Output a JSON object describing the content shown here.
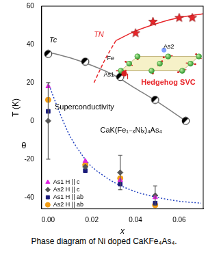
{
  "chart_data": {
    "type": "scatter",
    "caption": "Phase diagram of Ni doped CaKFe₄As₄.",
    "x_label": "x",
    "y_label": "T (K)",
    "xlim": [
      -0.003,
      0.071
    ],
    "xticks": [
      {
        "value": 0,
        "label": "0.00"
      },
      {
        "value": 0.02,
        "label": "0.02"
      },
      {
        "value": 0.04,
        "label": "0.04"
      },
      {
        "value": 0.06,
        "label": "0.06"
      }
    ],
    "ylim": [
      -46,
      60
    ],
    "yticks": [
      -40,
      -20,
      0,
      20,
      40,
      60
    ],
    "grid": false,
    "legend": "lower left",
    "phase_points": [
      {
        "name": "Tc",
        "color": "#000000",
        "marker": "half-filled circle",
        "x": [
          0,
          0.017,
          0.033,
          0.049,
          0.063
        ],
        "values": [
          35,
          31,
          23,
          11,
          0
        ]
      },
      {
        "name": "TN",
        "color": "#e8262a",
        "marker": "star",
        "x": [
          0.04,
          0.048,
          0.06,
          0.066
        ],
        "values": [
          46,
          52,
          54,
          54
        ]
      }
    ],
    "series": [
      {
        "name": "As1 H || c",
        "color": "#e020e0",
        "marker": "triangle",
        "x": [
          0,
          0.017,
          0.033,
          0.049
        ],
        "values": [
          18,
          -21,
          -31,
          -40
        ]
      },
      {
        "name": "As2 H || c",
        "color": "#555555",
        "marker": "diamond",
        "x": [
          0,
          0.017,
          0.033,
          0.049
        ],
        "values": [
          0,
          -24,
          -27,
          -39
        ],
        "error": [
          20,
          null,
          9,
          5
        ]
      },
      {
        "name": "As1 H || ab",
        "color": "#1a1a7a",
        "marker": "square",
        "x": [
          0,
          0.017,
          0.033,
          0.049
        ],
        "values": [
          5,
          -26,
          -33,
          -43
        ]
      },
      {
        "name": "As2 H || ab",
        "color": "#f39c12",
        "marker": "circle",
        "x": [
          0,
          0.017,
          0.033,
          0.049
        ],
        "values": [
          11,
          -23,
          -30,
          -44
        ]
      }
    ],
    "curves": [
      {
        "color": "#7f7f7f",
        "line_style": "solid",
        "x": [
          0,
          0.01,
          0.02,
          0.03,
          0.04,
          0.05,
          0.063
        ],
        "values": [
          36,
          33,
          29,
          24,
          17,
          10,
          0
        ]
      },
      {
        "color": "#1f3fbf",
        "line_style": "dotted",
        "x": [
          0,
          0.005,
          0.01,
          0.015,
          0.02,
          0.03,
          0.04,
          0.05,
          0.06,
          0.07
        ],
        "values": [
          20,
          5,
          -8,
          -17,
          -24,
          -32,
          -37,
          -40,
          -42,
          -43
        ]
      },
      {
        "color": "#e8262a",
        "line_style": "dashed",
        "x": [
          0.021,
          0.026,
          0.031
        ],
        "values": [
          20,
          32,
          42
        ]
      },
      {
        "color": "#e8262a",
        "line_style": "solid",
        "x": [
          0.031,
          0.04,
          0.05,
          0.06,
          0.071
        ],
        "values": [
          42,
          47,
          51,
          54,
          56
        ]
      }
    ],
    "annotations": [
      {
        "text": "Superconductivity",
        "color": "#000000"
      },
      {
        "text": "Hedgehog SVC",
        "color": "#e8262a"
      },
      {
        "text": "CaK(Fe₁₋ₓNiₓ)₄As₄",
        "color": "#000000"
      },
      {
        "text": "θ",
        "color": "#000000"
      }
    ],
    "inset_labels": [
      "As2",
      "Fe",
      "As1"
    ]
  }
}
